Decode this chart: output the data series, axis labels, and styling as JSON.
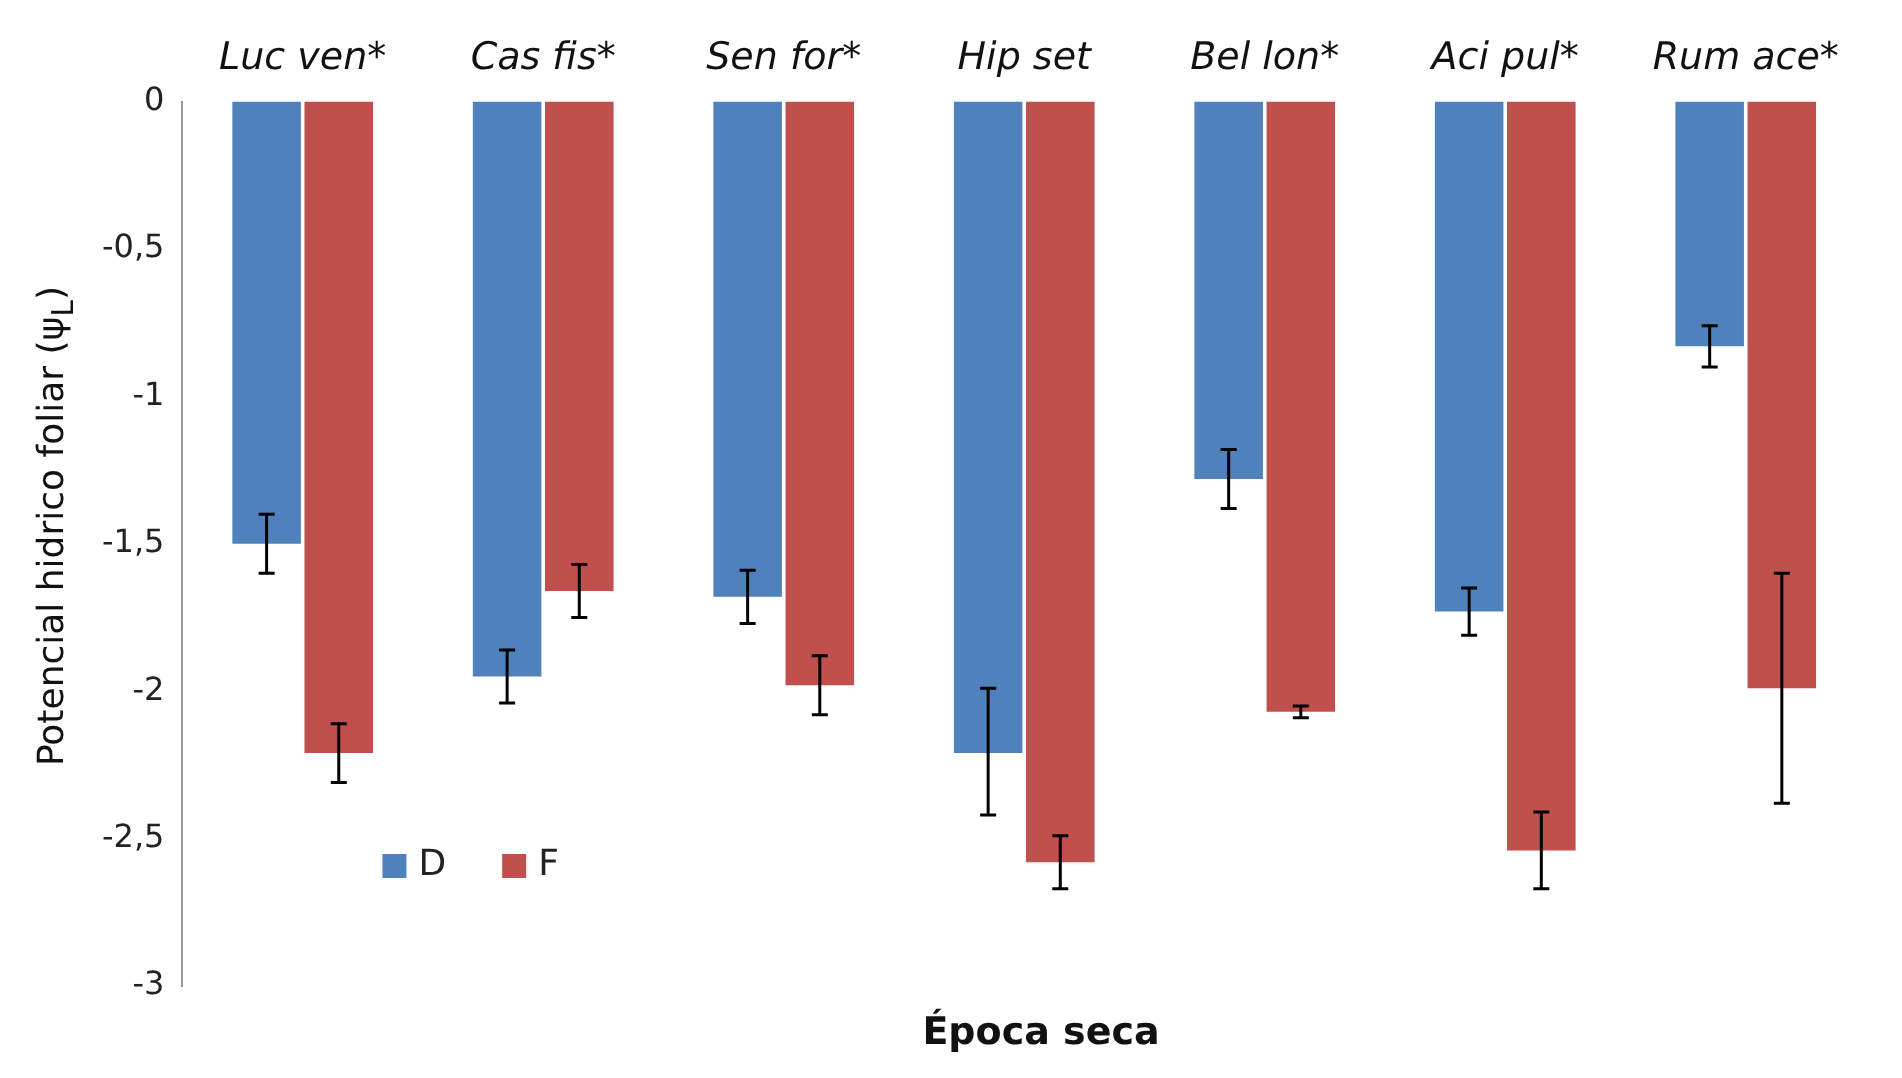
{
  "chart_data": {
    "type": "bar",
    "xlabel": "Época seca",
    "ylabel": "Potencial hidrico foliar (ψ$_{L}$)",
    "categories": [
      "Luc ven*",
      "Cas fis*",
      "Sen for*",
      "Hip set",
      "Bel lon*",
      "Aci pul*",
      "Rum ace*"
    ],
    "series": [
      {
        "name": "D",
        "color": "#4f81bd",
        "values": [
          -1.5,
          -1.95,
          -1.68,
          -2.21,
          -1.28,
          -1.73,
          -0.83
        ],
        "errors": [
          0.1,
          0.09,
          0.09,
          [
            -2.42,
            -1.99
          ],
          0.1,
          0.08,
          0.07
        ]
      },
      {
        "name": "F",
        "color": "#c0504d",
        "values": [
          -2.21,
          -1.66,
          -1.98,
          -2.58,
          -2.07,
          -2.54,
          -1.99
        ],
        "errors": [
          0.1,
          0.09,
          0.1,
          0.09,
          0.02,
          0.13,
          0.39
        ]
      }
    ],
    "ylim": [
      -3,
      0
    ],
    "yticks": [
      {
        "value": 0,
        "label": "0"
      },
      {
        "value": -0.5,
        "label": "-0,5"
      },
      {
        "value": -1,
        "label": "-1"
      },
      {
        "value": -1.5,
        "label": "-1,5"
      },
      {
        "value": -2,
        "label": "-2"
      },
      {
        "value": -2.5,
        "label": "-2,5"
      },
      {
        "value": -3,
        "label": "-3"
      }
    ],
    "grid": false,
    "legend": "bottom left"
  }
}
